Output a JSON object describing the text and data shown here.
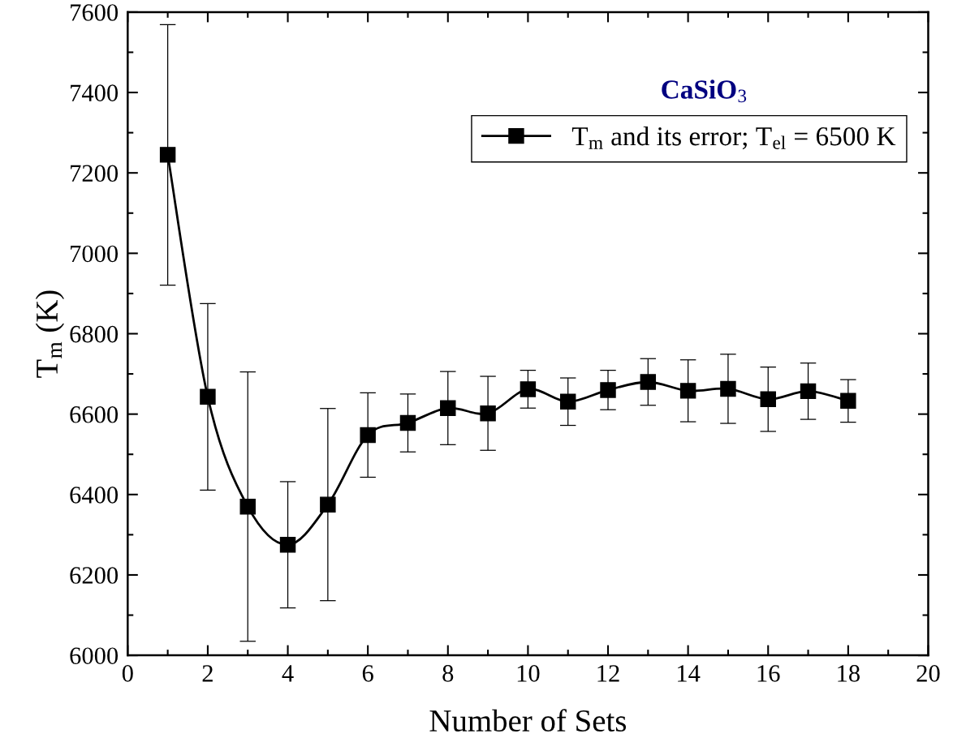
{
  "chart_data": {
    "type": "line",
    "title": "CaSiO$_{3}$",
    "xlabel": "Number of Sets",
    "ylabel": "T$_{m}$ (K)",
    "x": [
      1,
      2,
      3,
      4,
      5,
      6,
      7,
      8,
      9,
      10,
      11,
      12,
      13,
      14,
      15,
      16,
      17,
      18
    ],
    "series": [
      {
        "name": "T$_{m}$ and its error; T$_{el}$ = 6500 K",
        "color": "#000000",
        "values": [
          7245,
          6643,
          6370,
          6275,
          6375,
          6548,
          6578,
          6615,
          6602,
          6662,
          6631,
          6660,
          6680,
          6658,
          6663,
          6637,
          6657,
          6633
        ],
        "errors": [
          324,
          232,
          335,
          157,
          239,
          105,
          72,
          91,
          92,
          47,
          59,
          49,
          58,
          77,
          86,
          80,
          70,
          53
        ]
      }
    ],
    "xlim": [
      0,
      20
    ],
    "xticks": [
      0,
      2,
      4,
      6,
      8,
      10,
      12,
      14,
      16,
      18,
      20
    ],
    "ylim": [
      6000,
      7600
    ],
    "yticks": [
      6000,
      6200,
      6400,
      6600,
      6800,
      7000,
      7200,
      7400,
      7600
    ],
    "marker": "square",
    "line_style": "solid",
    "legend": "top right",
    "grid": false
  }
}
